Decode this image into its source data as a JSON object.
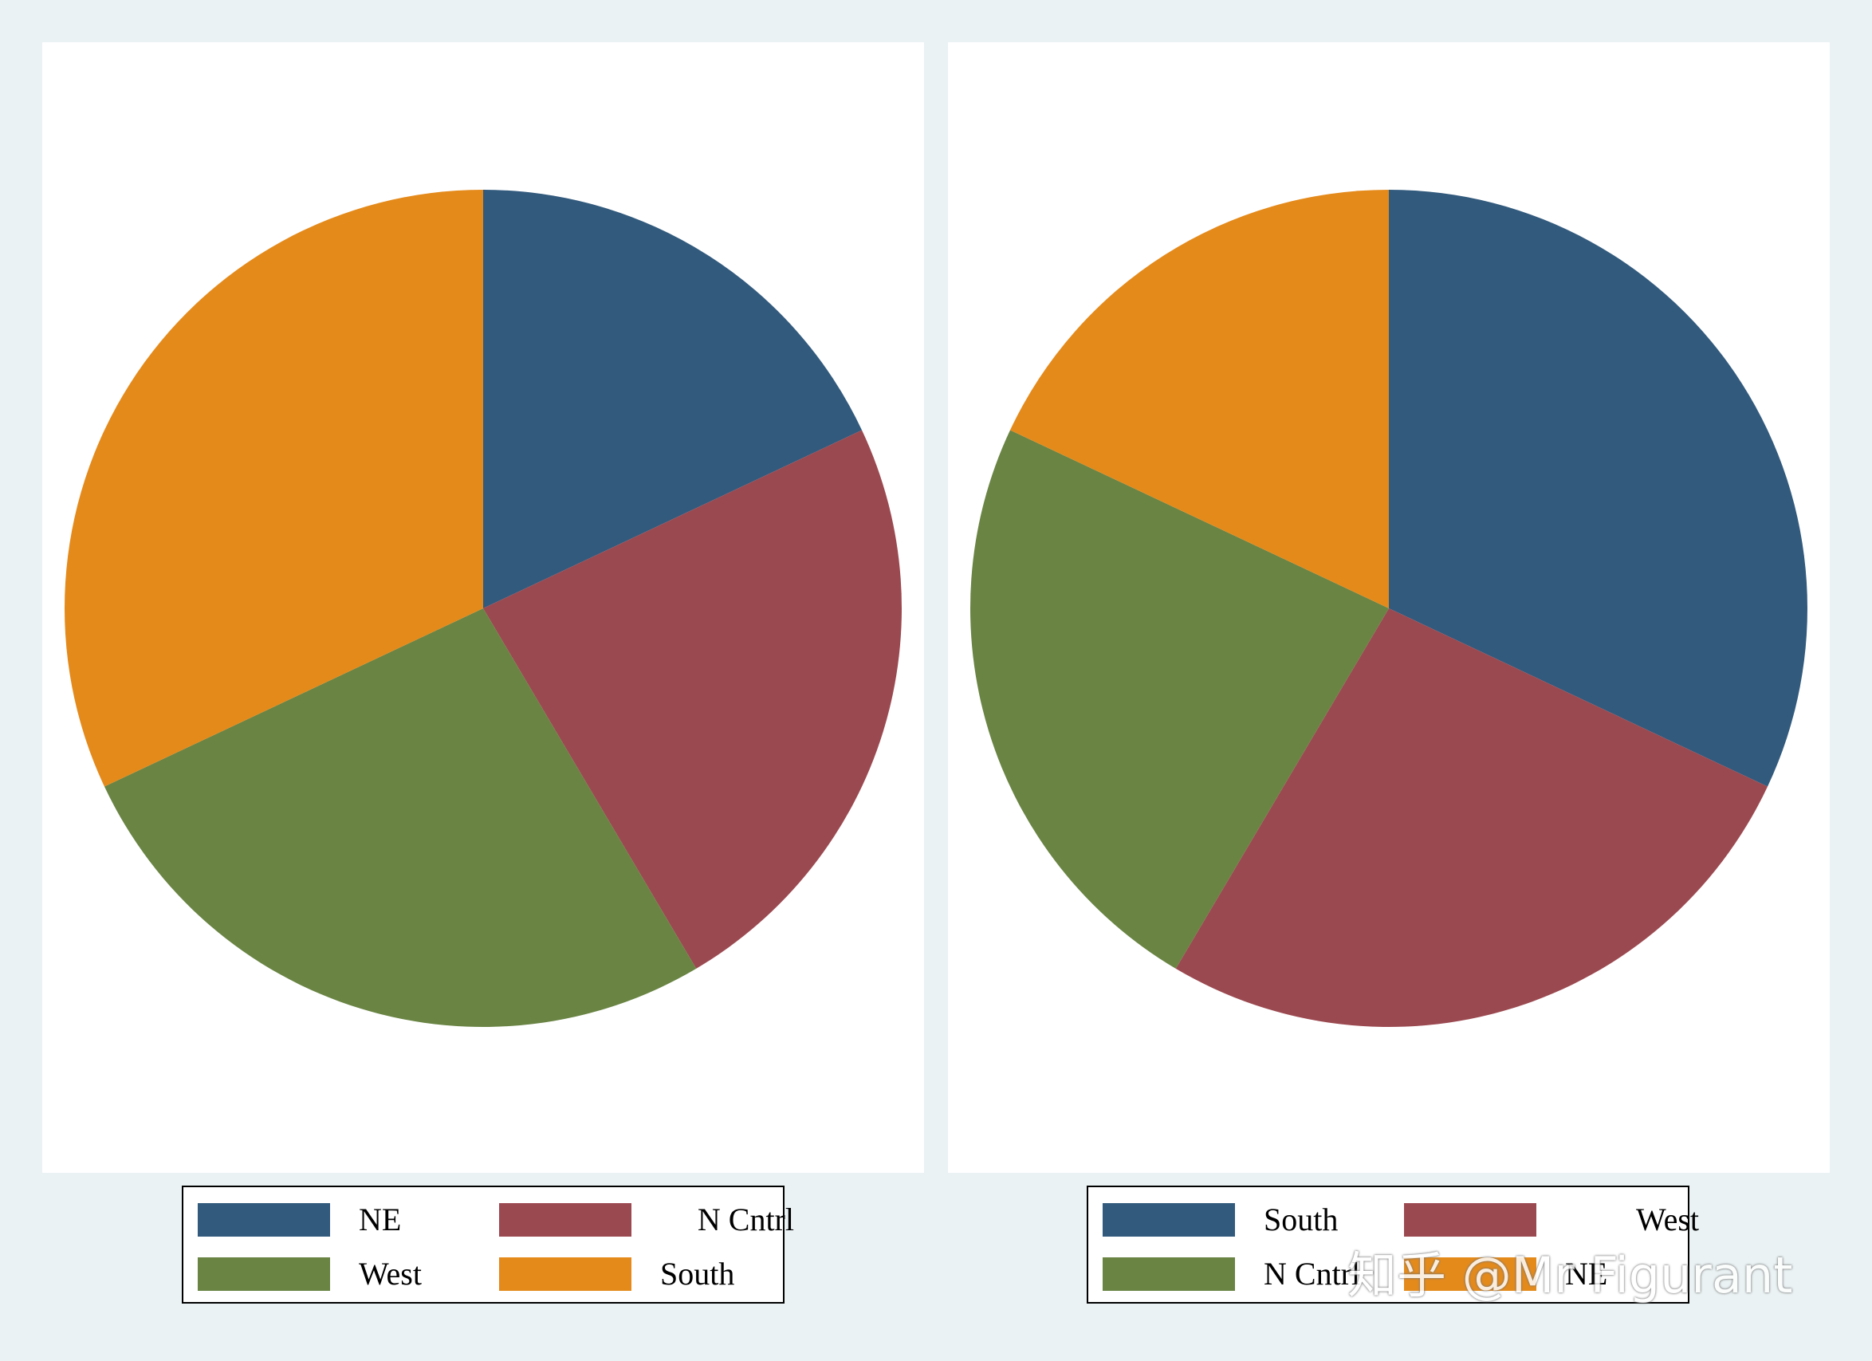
{
  "chart_data": [
    {
      "type": "pie",
      "title": "",
      "start": "12 o'clock",
      "direction": "clockwise",
      "slices": [
        {
          "label": "NE",
          "value": 18.0,
          "color": "#325a7d"
        },
        {
          "label": "N Cntrl",
          "value": 23.5,
          "color": "#9b4950"
        },
        {
          "label": "West",
          "value": 26.5,
          "color": "#698443"
        },
        {
          "label": "South",
          "value": 32.0,
          "color": "#e48a1b"
        }
      ],
      "legend": {
        "placement": "bottom",
        "items": [
          {
            "label": "NE",
            "color": "#325a7d",
            "label_align": "left"
          },
          {
            "label": "N Cntrl",
            "color": "#9b4950",
            "label_align": "right"
          },
          {
            "label": "West",
            "color": "#698443",
            "label_align": "left"
          },
          {
            "label": "South",
            "color": "#e48a1b",
            "label_align": "left"
          }
        ]
      }
    },
    {
      "type": "pie",
      "title": "",
      "start": "12 o'clock",
      "direction": "clockwise",
      "slices": [
        {
          "label": "South",
          "value": 32.0,
          "color": "#325a7d"
        },
        {
          "label": "West",
          "value": 26.5,
          "color": "#9b4950"
        },
        {
          "label": "N Cntrl",
          "value": 23.5,
          "color": "#698443"
        },
        {
          "label": "NE",
          "value": 18.0,
          "color": "#e48a1b"
        }
      ],
      "legend": {
        "placement": "bottom",
        "items": [
          {
            "label": "South",
            "color": "#325a7d",
            "label_align": "left"
          },
          {
            "label": "West",
            "color": "#9b4950",
            "label_align": "right"
          },
          {
            "label": "N Cntrl",
            "color": "#698443",
            "label_align": "left"
          },
          {
            "label": "NE",
            "color": "#e48a1b",
            "label_align": "left"
          }
        ]
      }
    }
  ],
  "watermark": "知乎 @Mr Figurant",
  "colors": {
    "background": "#eaf2f3",
    "panel": "#ffffff"
  }
}
